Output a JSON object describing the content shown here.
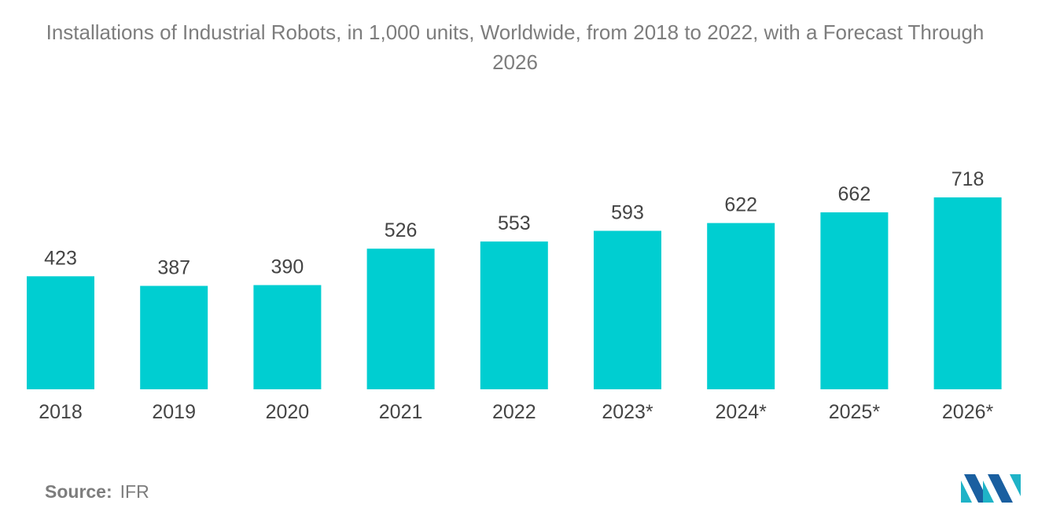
{
  "chart_data": {
    "type": "bar",
    "title": "Installations of Industrial Robots, in 1,000 units, Worldwide, from 2018 to 2022, with a Forecast Through 2026",
    "categories": [
      "2018",
      "2019",
      "2020",
      "2021",
      "2022",
      "2023*",
      "2024*",
      "2025*",
      "2026*"
    ],
    "values": [
      423,
      387,
      390,
      526,
      553,
      593,
      622,
      662,
      718
    ],
    "xlabel": "",
    "ylabel": "",
    "ylim": [
      0,
      800
    ],
    "grid": false,
    "legend": "none",
    "bar_color": "#00ced1"
  },
  "source": {
    "label": "Source:",
    "value": "IFR"
  },
  "logo": {
    "icon": "mordor-intelligence-logo-icon",
    "colors": [
      "#1fb3c7",
      "#1a5fa0"
    ]
  }
}
